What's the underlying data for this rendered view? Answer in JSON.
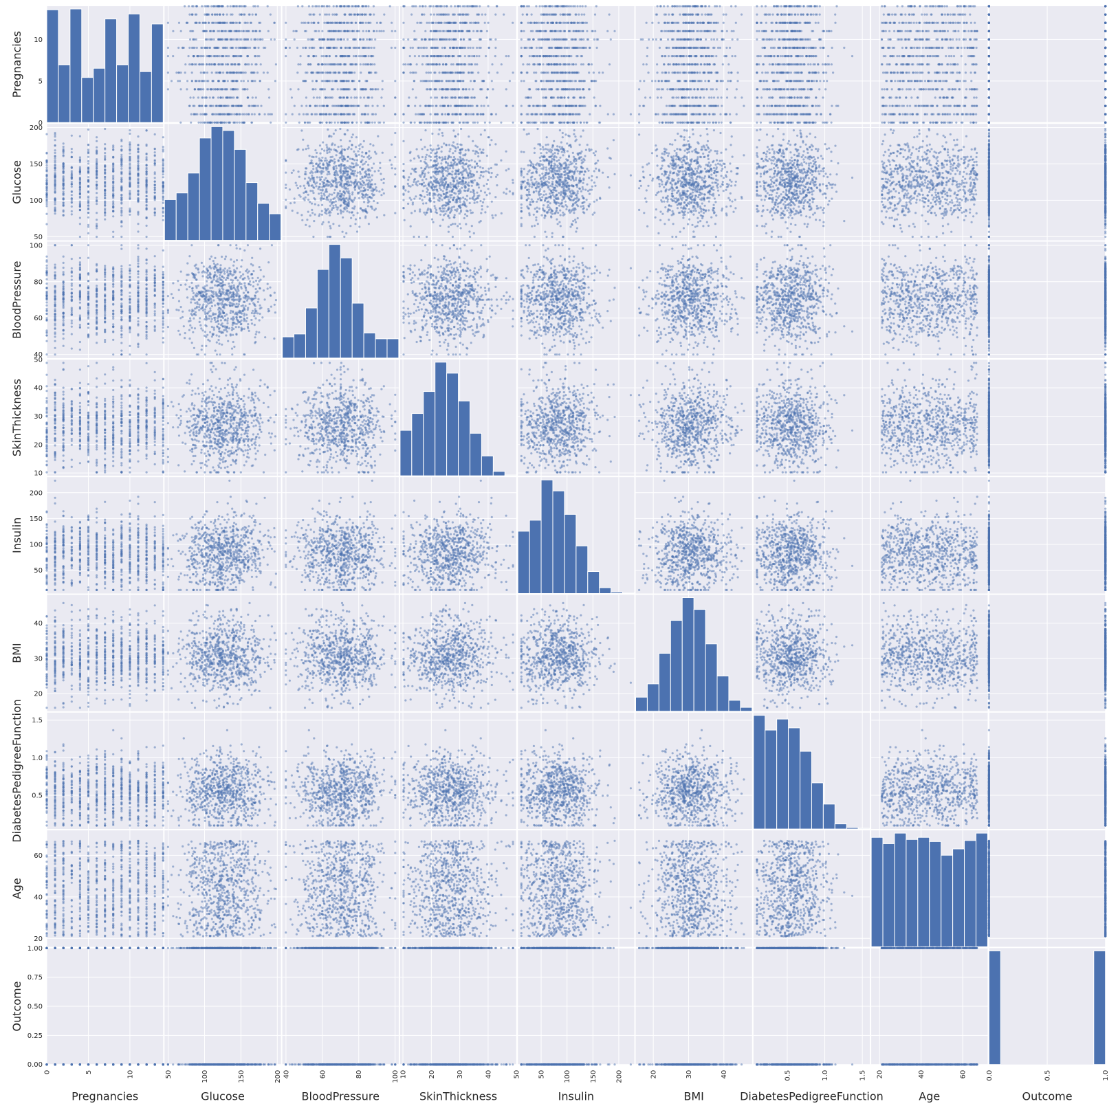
{
  "chart_data": {
    "type": "scatter_matrix",
    "title": "",
    "style": {
      "panel_color": "#eaeaf2",
      "grid_color": "#ffffff",
      "mark_color": "#4c72b0",
      "diagonal": "histogram",
      "point_alpha": 0.5
    },
    "variables": [
      {
        "name": "Pregnancies",
        "range": [
          0,
          14
        ],
        "kind": "integer",
        "ticks": [
          0,
          5,
          10
        ],
        "tick_labels": [
          "0",
          "5",
          "10"
        ],
        "hist": [
          13.5,
          6.9,
          13.6,
          5.4,
          6.5,
          12.4,
          6.9,
          13.0,
          6.1,
          11.8
        ]
      },
      {
        "name": "Glucose",
        "range": [
          45,
          205
        ],
        "kind": "normal",
        "mean": 125,
        "sd": 28,
        "ticks": [
          50,
          100,
          150,
          200
        ],
        "tick_labels": [
          "50",
          "100",
          "150",
          "200"
        ],
        "hist": [
          43,
          50,
          71,
          108,
          120,
          116,
          96,
          61,
          39,
          28
        ]
      },
      {
        "name": "BloodPressure",
        "range": [
          38,
          102
        ],
        "kind": "normal",
        "mean": 70,
        "sd": 12,
        "ticks": [
          40,
          60,
          80,
          100
        ],
        "tick_labels": [
          "40",
          "60",
          "80",
          "100"
        ],
        "hist": [
          22,
          25,
          52,
          92,
          118,
          104,
          57,
          26,
          20,
          20
        ]
      },
      {
        "name": "SkinThickness",
        "range": [
          9,
          50
        ],
        "kind": "normal",
        "mean": 27,
        "sd": 7.5,
        "ticks": [
          10,
          20,
          30,
          40,
          50
        ],
        "tick_labels": [
          "10",
          "20",
          "30",
          "40",
          "50"
        ],
        "hist": [
          62,
          85,
          115,
          155,
          140,
          102,
          58,
          27,
          6,
          1
        ]
      },
      {
        "name": "Insulin",
        "range": [
          5,
          230
        ],
        "kind": "normal",
        "mean": 85,
        "sd": 38,
        "ticks": [
          50,
          100,
          150,
          200
        ],
        "tick_labels": [
          "50",
          "100",
          "150",
          "200"
        ],
        "hist": [
          85,
          100,
          155,
          140,
          108,
          65,
          30,
          8,
          2,
          1
        ]
      },
      {
        "name": "BMI",
        "range": [
          15,
          48
        ],
        "kind": "normal",
        "mean": 30.5,
        "sd": 5.5,
        "ticks": [
          20,
          30,
          40
        ],
        "tick_labels": [
          "20",
          "30",
          "40"
        ],
        "hist": [
          18,
          35,
          74,
          116,
          145,
          130,
          86,
          45,
          14,
          5
        ]
      },
      {
        "name": "DiabetesPedigreeFunction",
        "range": [
          0.05,
          1.6
        ],
        "kind": "normal",
        "mean": 0.55,
        "sd": 0.25,
        "ticks": [
          0.5,
          1.0,
          1.5
        ],
        "tick_labels": [
          "0.5",
          "1.0",
          "1.5"
        ],
        "hist": [
          155,
          135,
          150,
          138,
          106,
          63,
          34,
          7,
          2,
          1
        ]
      },
      {
        "name": "Age",
        "range": [
          16,
          72
        ],
        "kind": "uniform",
        "ticks": [
          20,
          40,
          60
        ],
        "tick_labels": [
          "20",
          "40",
          "60"
        ],
        "hist": [
          104,
          98,
          108,
          102,
          104,
          100,
          87,
          93,
          101,
          108
        ]
      },
      {
        "name": "Outcome",
        "range": [
          0,
          1
        ],
        "kind": "binary",
        "ticks": [
          0,
          0.25,
          0.5,
          0.75,
          1
        ],
        "tick_labels": [
          "0.00",
          "0.25",
          "0.50",
          "0.75",
          "1.00"
        ],
        "bottom_tick_labels": [
          "0.0",
          "0.5",
          "1.0"
        ],
        "bottom_ticks": [
          0,
          0.5,
          1
        ],
        "hist": [
          97,
          0,
          0,
          0,
          0,
          0,
          0,
          0,
          0,
          97
        ]
      }
    ]
  }
}
